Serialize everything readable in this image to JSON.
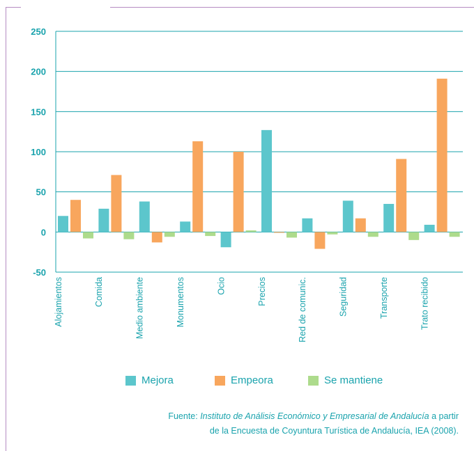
{
  "chart_data": {
    "type": "bar",
    "categories": [
      "Alojamientos",
      "Comida",
      "Medio ambiente",
      "Monumentos",
      "Ocio",
      "Precios",
      "Red de comunic.",
      "Seguridad",
      "Transporte",
      "Trato recibido"
    ],
    "series": [
      {
        "name": "Mejora",
        "color": "#5cc6cc",
        "values": [
          20,
          29,
          38,
          13,
          -19,
          127,
          17,
          39,
          35,
          9
        ]
      },
      {
        "name": "Empeora",
        "color": "#f8a65d",
        "values": [
          40,
          71,
          -13,
          113,
          100,
          -1,
          -21,
          17,
          91,
          191
        ]
      },
      {
        "name": "Se mantiene",
        "color": "#addb8c",
        "values": [
          -8,
          -9,
          -6,
          -5,
          2,
          -7,
          -3,
          -6,
          -10,
          -6
        ]
      }
    ],
    "yticks": [
      -50,
      0,
      50,
      100,
      150,
      200,
      250
    ],
    "ylim": [
      -50,
      250
    ],
    "grid": true,
    "legend_position": "bottom",
    "axis_color": "#1aa3ad"
  },
  "source": {
    "prefix": "Fuente: ",
    "italic": "Instituto de Análisis Económico y Empresarial de Andalucía",
    "suffix": " a partir",
    "line2": "de la Encuesta de Coyuntura Turística de Andalucía, IEA (2008)."
  }
}
